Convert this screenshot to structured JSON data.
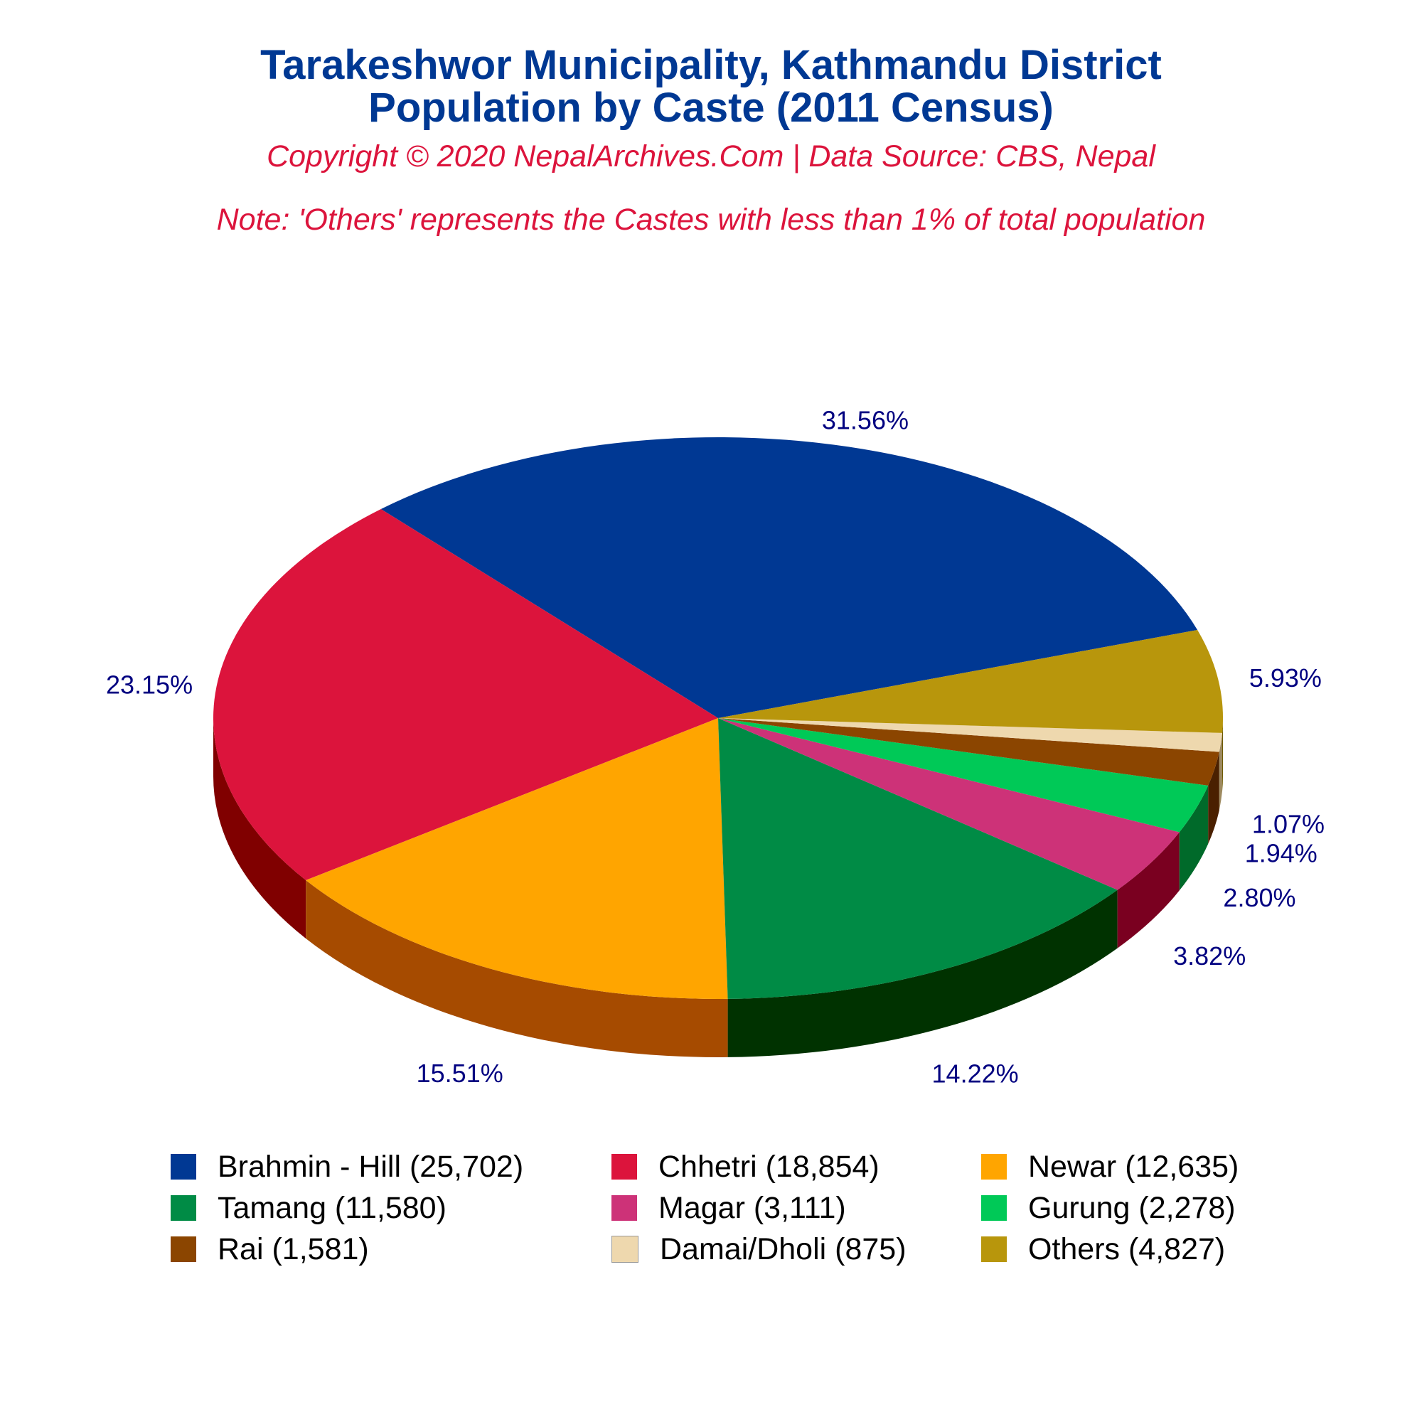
{
  "header": {
    "title_line1": "Tarakeshwor Municipality, Kathmandu District",
    "title_line2": "Population by Caste (2011 Census)",
    "subtitle": "Copyright © 2020 NepalArchives.Com | Data Source: CBS, Nepal",
    "note": "Note: 'Others' represents the Castes with less than 1% of total population"
  },
  "chart_data": {
    "type": "pie",
    "style": "3d",
    "categories": [
      "Brahmin - Hill",
      "Chhetri",
      "Newar",
      "Tamang",
      "Magar",
      "Gurung",
      "Rai",
      "Damai/Dholi",
      "Others"
    ],
    "values": [
      25702,
      18854,
      12635,
      11580,
      3111,
      2278,
      1581,
      875,
      4827
    ],
    "percent_labels": [
      "31.56%",
      "23.15%",
      "15.51%",
      "14.22%",
      "3.82%",
      "2.80%",
      "1.94%",
      "1.07%",
      "5.93%"
    ],
    "colors": [
      "#003893",
      "#DC143C",
      "#FFA500",
      "#008B45",
      "#CD3278",
      "#00C957",
      "#8B4500",
      "#EED8AE",
      "#B8960C"
    ],
    "side_colors": [
      "#001E5A",
      "#800000",
      "#A64B00",
      "#003200",
      "#7A0020",
      "#006A2A",
      "#4A2000",
      "#9E8A60",
      "#6E5A00"
    ],
    "label_color": "#000080",
    "legend_position": "bottom"
  },
  "legend": {
    "items": [
      {
        "label": "Brahmin - Hill (25,702)",
        "color": "#003893"
      },
      {
        "label": "Chhetri (18,854)",
        "color": "#DC143C"
      },
      {
        "label": "Newar (12,635)",
        "color": "#FFA500"
      },
      {
        "label": "Tamang (11,580)",
        "color": "#008B45"
      },
      {
        "label": "Magar (3,111)",
        "color": "#CD3278"
      },
      {
        "label": "Gurung (2,278)",
        "color": "#00C957"
      },
      {
        "label": "Rai (1,581)",
        "color": "#8B4500"
      },
      {
        "label": "Damai/Dholi (875)",
        "color": "#EED8AE"
      },
      {
        "label": "Others (4,827)",
        "color": "#B8960C"
      }
    ]
  }
}
